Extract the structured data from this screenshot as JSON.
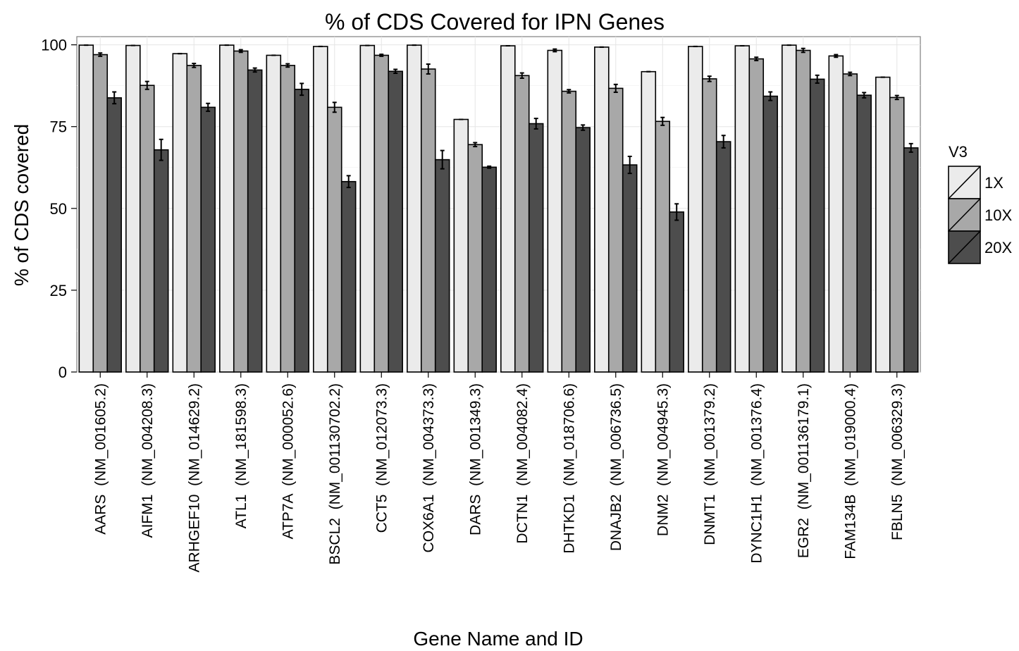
{
  "chart_data": {
    "type": "bar",
    "title": "% of CDS Covered for IPN Genes",
    "xlabel": "Gene Name and ID",
    "ylabel": "% of CDS covered",
    "ylim": [
      0,
      102.5
    ],
    "yticks": [
      0,
      25,
      50,
      75,
      100
    ],
    "grid": true,
    "legend": {
      "title": "V3",
      "position": "right"
    },
    "categories": [
      "AARS  (NM_001605.2)",
      "AIFM1  (NM_004208.3)",
      "ARHGEF10  (NM_014629.2)",
      "ATL1  (NM_181598.3)",
      "ATP7A  (NM_000052.6)",
      "BSCL2  (NM_001130702.2)",
      "CCT5  (NM_012073.3)",
      "COX6A1  (NM_004373.3)",
      "DARS  (NM_001349.3)",
      "DCTN1  (NM_004082.4)",
      "DHTKD1  (NM_018706.6)",
      "DNAJB2  (NM_006736.5)",
      "DNM2  (NM_004945.3)",
      "DNMT1  (NM_001379.2)",
      "DYNC1H1  (NM_001376.4)",
      "EGR2  (NM_001136179.1)",
      "FAM134B  (NM_019000.4)",
      "FBLN5  (NM_006329.3)"
    ],
    "series": [
      {
        "name": "1X",
        "color": "#ebebeb",
        "values": [
          99.9,
          99.8,
          97.3,
          99.9,
          96.8,
          99.5,
          99.8,
          99.9,
          77.2,
          99.7,
          98.3,
          99.3,
          91.8,
          99.5,
          99.7,
          99.9,
          96.6,
          90.1
        ],
        "errors": [
          0,
          0,
          0,
          0,
          0,
          0,
          0,
          0,
          0,
          0,
          0.4,
          0,
          0,
          0,
          0,
          0,
          0.4,
          0
        ]
      },
      {
        "name": "10X",
        "color": "#a8a8a8",
        "values": [
          97.0,
          87.6,
          93.7,
          98.1,
          93.7,
          80.9,
          96.8,
          92.6,
          69.5,
          90.6,
          85.8,
          86.7,
          76.6,
          89.6,
          95.7,
          98.3,
          91.1,
          83.9
        ],
        "errors": [
          0.5,
          1.2,
          0.6,
          0.4,
          0.5,
          1.5,
          0.3,
          1.5,
          0.6,
          0.8,
          0.5,
          1.2,
          1.2,
          0.8,
          0.5,
          0.6,
          0.5,
          0.6
        ]
      },
      {
        "name": "20X",
        "color": "#4d4d4d",
        "values": [
          83.8,
          67.9,
          80.9,
          92.3,
          86.4,
          58.2,
          91.9,
          64.9,
          62.6,
          75.9,
          74.7,
          63.3,
          48.9,
          70.4,
          84.3,
          89.5,
          84.6,
          68.5
        ],
        "errors": [
          1.8,
          3.2,
          1.2,
          0.6,
          1.8,
          1.8,
          0.6,
          2.8,
          0.3,
          1.6,
          0.8,
          2.6,
          2.5,
          1.9,
          1.3,
          1.2,
          0.8,
          1.3
        ]
      }
    ]
  }
}
